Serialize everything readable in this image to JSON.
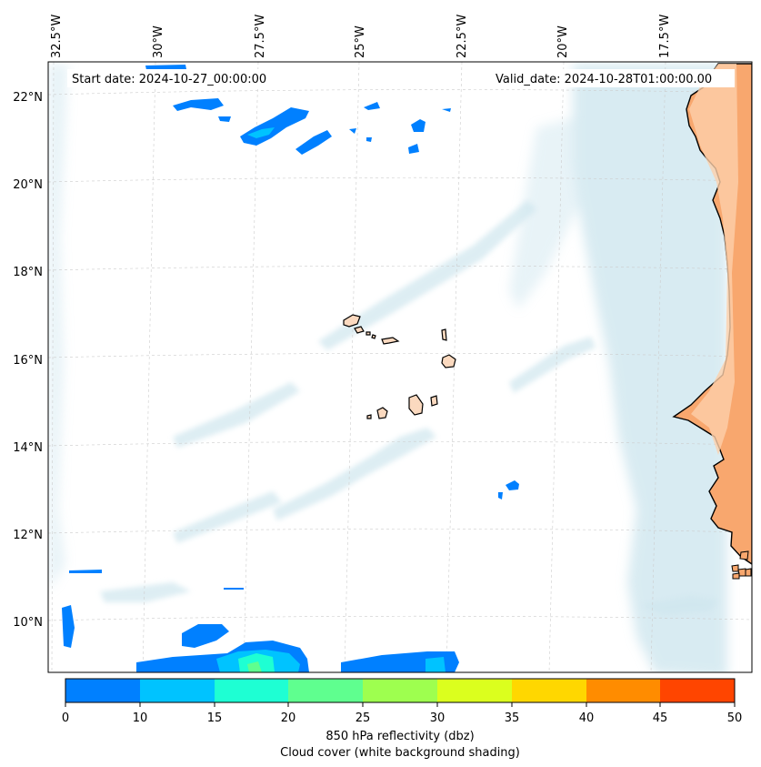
{
  "header": {
    "start_date": "Start date: 2024-10-27_00:00:00",
    "valid_date": "Valid_date: 2024-10-28T01:00:00.00"
  },
  "map": {
    "lon_labels": [
      "32.5°W",
      "30°W",
      "27.5°W",
      "25°W",
      "22.5°W",
      "20°W",
      "17.5°W"
    ],
    "lat_labels": [
      "22°N",
      "20°N",
      "18°N",
      "16°N",
      "14°N",
      "12°N",
      "10°N"
    ],
    "land_color": "#fbd9bf",
    "cloud_color": "#b9dbe7"
  },
  "colorbar": {
    "ticks": [
      "0",
      "10",
      "15",
      "20",
      "25",
      "30",
      "35",
      "40",
      "45",
      "50"
    ],
    "colors": [
      "#0080ff",
      "#00c3ff",
      "#1effd3",
      "#5fff8f",
      "#9eff4f",
      "#dbff1e",
      "#ffd700",
      "#ff8c00",
      "#ff4500"
    ],
    "label_line1": "850 hPa reflectivity (dbz)",
    "label_line2": "Cloud cover (white background shading)"
  }
}
